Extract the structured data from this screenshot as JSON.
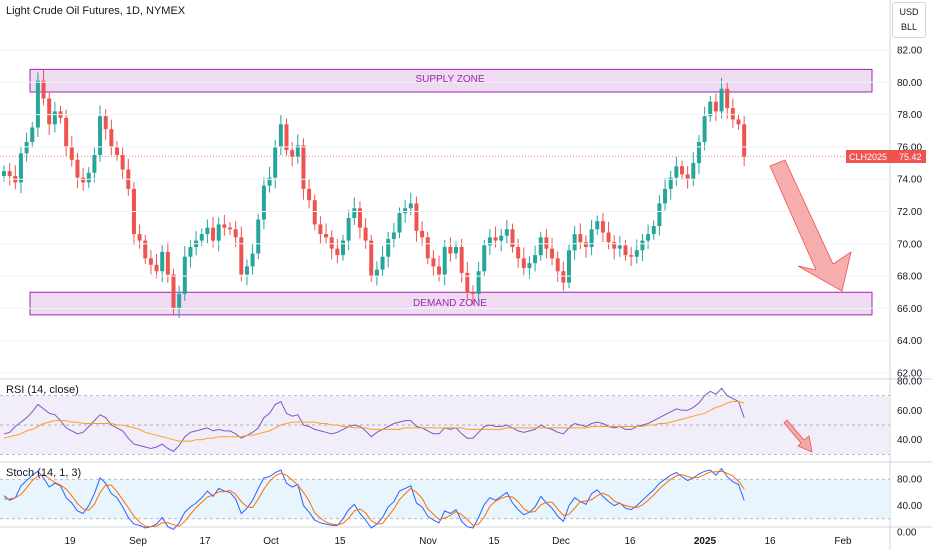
{
  "header": {
    "title": "Light Crude Oil Futures, 1D, NYMEX",
    "currency": "USD",
    "unit": "BLL"
  },
  "price_tag": {
    "symbol": "CLH2025",
    "value": "75.42"
  },
  "zones": {
    "supply": "SUPPLY ZONE",
    "demand": "DEMAND ZONE"
  },
  "rsi_label": "RSI (14, close)",
  "stoch_label": "Stoch (14, 1, 3)",
  "colors": {
    "up": "#26a69a",
    "down": "#ef5350",
    "zone_border": "#9c27b0",
    "zone_fill": "#e1bee7",
    "rsi_line": "#7e57c2",
    "rsi_ma": "#f7a21b",
    "stoch_k": "#2962ff",
    "stoch_d": "#ff6d00",
    "arrow": "#f28b8b",
    "price_tag": "#ef5350"
  },
  "chart_data": [
    {
      "type": "candlestick",
      "title": "Light Crude Oil Futures, 1D, NYMEX",
      "ylim": [
        62,
        82
      ],
      "y_ticks": [
        "82.00",
        "80.00",
        "78.00",
        "76.00",
        "74.00",
        "72.00",
        "70.00",
        "68.00",
        "66.00",
        "64.00",
        "62.00"
      ],
      "x_ticks": [
        "19",
        "Sep",
        "17",
        "Oct",
        "15",
        "Nov",
        "15",
        "Dec",
        "16",
        "2025",
        "16",
        "Feb"
      ],
      "close": [
        74.5,
        74.2,
        73.8,
        75.6,
        76.3,
        77.2,
        80.1,
        79.0,
        77.4,
        78.2,
        77.8,
        76.0,
        75.2,
        74.1,
        73.8,
        74.4,
        75.5,
        77.9,
        77.1,
        76.0,
        75.5,
        74.6,
        73.4,
        70.6,
        70.2,
        69.1,
        68.7,
        68.3,
        69.5,
        68.1,
        66.0,
        66.9,
        69.2,
        69.8,
        70.2,
        70.6,
        71.0,
        70.2,
        71.2,
        71.0,
        70.9,
        70.4,
        68.1,
        68.6,
        69.4,
        71.5,
        73.6,
        74.1,
        76.0,
        77.4,
        75.8,
        75.4,
        76.1,
        73.4,
        72.7,
        71.2,
        70.6,
        70.4,
        69.7,
        69.3,
        70.2,
        71.6,
        72.2,
        71.0,
        70.2,
        68.0,
        68.4,
        69.2,
        70.3,
        70.7,
        71.9,
        72.2,
        72.5,
        70.8,
        70.4,
        69.1,
        68.6,
        68.1,
        69.8,
        69.4,
        69.8,
        68.2,
        67.0,
        66.9,
        68.3,
        69.9,
        70.4,
        70.2,
        70.5,
        70.9,
        69.8,
        69.1,
        68.5,
        68.8,
        69.3,
        70.4,
        69.7,
        69.1,
        68.3,
        67.6,
        69.6,
        70.6,
        70.1,
        69.8,
        70.9,
        71.4,
        70.7,
        70.1,
        69.7,
        69.9,
        69.3,
        69.2,
        69.6,
        70.2,
        70.6,
        71.1,
        72.5,
        73.4,
        74.1,
        74.8,
        74.3,
        74.0,
        75.0,
        76.3,
        77.9,
        78.8,
        78.2,
        79.6,
        78.4,
        77.7,
        77.4,
        75.4
      ],
      "marked_levels": {
        "supply_zone": [
          79.4,
          80.8
        ],
        "demand_zone": [
          65.6,
          67.0
        ]
      },
      "last_price": 75.42
    },
    {
      "type": "line",
      "title": "RSI (14, close)",
      "ylim": [
        20,
        80
      ],
      "y_ticks": [
        "80.00",
        "60.00",
        "40.00"
      ],
      "bands": [
        70,
        30
      ],
      "series": [
        {
          "name": "RSI",
          "values": [
            44,
            45,
            49,
            52,
            55,
            59,
            64,
            61,
            58,
            57,
            53,
            48,
            46,
            44,
            45,
            49,
            53,
            57,
            55,
            50,
            48,
            46,
            41,
            37,
            36,
            35,
            34,
            35,
            37,
            34,
            32,
            36,
            42,
            45,
            46,
            47,
            48,
            46,
            47,
            46,
            46,
            44,
            41,
            43,
            45,
            48,
            55,
            58,
            64,
            66,
            58,
            56,
            57,
            50,
            49,
            47,
            46,
            45,
            44,
            45,
            47,
            49,
            50,
            49,
            46,
            42,
            45,
            47,
            49,
            51,
            52,
            53,
            53,
            49,
            48,
            46,
            44,
            44,
            48,
            47,
            48,
            44,
            41,
            41,
            45,
            49,
            50,
            49,
            49,
            50,
            48,
            46,
            45,
            46,
            47,
            50,
            48,
            47,
            45,
            44,
            48,
            51,
            50,
            49,
            51,
            52,
            51,
            49,
            48,
            49,
            47,
            47,
            49,
            50,
            51,
            53,
            55,
            57,
            59,
            61,
            60,
            60,
            62,
            65,
            70,
            73,
            71,
            75,
            70,
            68,
            66,
            55
          ]
        },
        {
          "name": "RSI-based MA",
          "values": [
            41,
            42,
            43,
            44,
            46,
            47,
            49,
            51,
            52,
            53,
            53,
            53,
            52,
            52,
            51,
            51,
            51,
            51,
            51,
            51,
            50,
            50,
            49,
            48,
            47,
            45,
            44,
            43,
            42,
            41,
            40,
            39,
            39,
            39,
            40,
            40,
            41,
            41,
            42,
            42,
            42,
            42,
            42,
            43,
            43,
            44,
            45,
            46,
            48,
            50,
            51,
            52,
            52,
            52,
            52,
            52,
            51,
            51,
            50,
            50,
            49,
            49,
            48,
            48,
            48,
            47,
            47,
            47,
            47,
            47,
            47,
            48,
            48,
            48,
            48,
            48,
            48,
            48,
            48,
            48,
            48,
            48,
            47,
            47,
            47,
            47,
            47,
            47,
            47,
            48,
            48,
            48,
            48,
            48,
            48,
            48,
            48,
            48,
            48,
            48,
            48,
            48,
            48,
            48,
            49,
            49,
            49,
            49,
            49,
            49,
            49,
            49,
            49,
            49,
            50,
            50,
            51,
            51,
            52,
            53,
            54,
            55,
            56,
            57,
            58,
            60,
            62,
            63,
            65,
            66,
            66,
            65
          ]
        }
      ]
    },
    {
      "type": "line",
      "title": "Stoch (14, 1, 3)",
      "ylim": [
        0,
        100
      ],
      "y_ticks": [
        "80.00",
        "40.00",
        "0.00"
      ],
      "bands": [
        80,
        20
      ],
      "series": [
        {
          "name": "%K",
          "values": [
            55,
            48,
            52,
            70,
            78,
            86,
            92,
            82,
            68,
            74,
            70,
            52,
            44,
            32,
            28,
            40,
            58,
            82,
            74,
            58,
            52,
            38,
            22,
            12,
            10,
            6,
            8,
            12,
            22,
            8,
            4,
            14,
            30,
            38,
            44,
            52,
            62,
            54,
            66,
            62,
            60,
            50,
            28,
            36,
            48,
            66,
            82,
            84,
            90,
            94,
            74,
            68,
            72,
            40,
            30,
            18,
            14,
            12,
            10,
            10,
            20,
            34,
            42,
            28,
            18,
            6,
            12,
            22,
            38,
            46,
            62,
            66,
            70,
            44,
            38,
            24,
            18,
            14,
            32,
            28,
            34,
            16,
            8,
            6,
            22,
            42,
            52,
            48,
            54,
            60,
            44,
            34,
            26,
            30,
            38,
            54,
            44,
            36,
            24,
            16,
            40,
            52,
            46,
            42,
            58,
            64,
            54,
            46,
            40,
            44,
            36,
            34,
            40,
            48,
            56,
            64,
            74,
            80,
            86,
            90,
            84,
            78,
            82,
            88,
            92,
            94,
            86,
            96,
            84,
            76,
            72,
            48
          ]
        },
        {
          "name": "%D",
          "values": [
            50,
            50,
            52,
            57,
            67,
            78,
            85,
            87,
            81,
            75,
            71,
            65,
            55,
            43,
            35,
            33,
            42,
            60,
            71,
            71,
            61,
            49,
            37,
            24,
            15,
            9,
            8,
            9,
            14,
            14,
            11,
            9,
            16,
            27,
            37,
            45,
            53,
            56,
            61,
            61,
            63,
            57,
            46,
            38,
            37,
            50,
            65,
            77,
            85,
            89,
            86,
            79,
            71,
            60,
            47,
            29,
            21,
            15,
            12,
            11,
            13,
            21,
            32,
            35,
            29,
            17,
            12,
            13,
            24,
            35,
            49,
            58,
            66,
            60,
            51,
            35,
            27,
            19,
            21,
            25,
            31,
            26,
            19,
            10,
            12,
            23,
            39,
            47,
            51,
            54,
            53,
            46,
            35,
            30,
            31,
            41,
            45,
            45,
            35,
            25,
            27,
            36,
            46,
            47,
            49,
            55,
            59,
            55,
            47,
            43,
            40,
            38,
            37,
            41,
            48,
            56,
            65,
            73,
            80,
            85,
            87,
            84,
            82,
            83,
            87,
            91,
            91,
            92,
            89,
            85,
            77,
            65
          ]
        }
      ]
    }
  ]
}
